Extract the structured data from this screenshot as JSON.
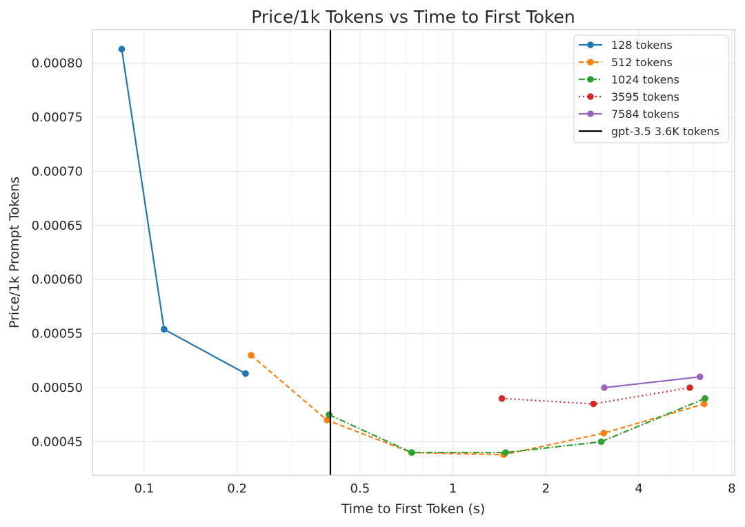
{
  "chart_data": {
    "type": "line",
    "title": "Price/1k Tokens vs Time to First Token",
    "xlabel": "Time to First Token (s)",
    "ylabel": "Price/1k Prompt Tokens",
    "xscale": "log",
    "xlim": [
      0.068,
      8.17
    ],
    "ylim": [
      0.000419,
      0.000831
    ],
    "xticks": [
      0.1,
      0.2,
      0.5,
      1,
      2,
      4,
      8
    ],
    "xtick_labels": [
      "0.1",
      "0.2",
      "0.5",
      "1",
      "2",
      "4",
      "8"
    ],
    "yticks": [
      0.00045,
      0.0005,
      0.00055,
      0.0006,
      0.00065,
      0.0007,
      0.00075,
      0.0008
    ],
    "ytick_labels": [
      "0.00045",
      "0.00050",
      "0.00055",
      "0.00060",
      "0.00065",
      "0.00070",
      "0.00075",
      "0.00080"
    ],
    "grid": true,
    "legend_position": "top-right",
    "series": [
      {
        "name": "128 tokens",
        "color": "#1f77b4",
        "style": "solid",
        "x": [
          0.0846,
          0.116,
          0.213
        ],
        "y": [
          0.000813,
          0.000554,
          0.000513
        ]
      },
      {
        "name": "512 tokens",
        "color": "#ff7f0e",
        "style": "dashed",
        "x": [
          0.222,
          0.391,
          0.735,
          1.46,
          3.08,
          6.51
        ],
        "y": [
          0.00053,
          0.00047,
          0.00044,
          0.000438,
          0.000458,
          0.000485
        ]
      },
      {
        "name": "1024 tokens",
        "color": "#2ca02c",
        "style": "dashdot",
        "x": [
          0.397,
          0.735,
          1.48,
          3.02,
          6.55
        ],
        "y": [
          0.000475,
          0.00044,
          0.00044,
          0.00045,
          0.00049
        ]
      },
      {
        "name": "3595 tokens",
        "color": "#d62728",
        "style": "dotted",
        "x": [
          1.44,
          2.85,
          5.85
        ],
        "y": [
          0.00049,
          0.000485,
          0.0005
        ]
      },
      {
        "name": "7584 tokens",
        "color": "#9467bd",
        "style": "solid",
        "x": [
          3.09,
          6.31
        ],
        "y": [
          0.0005,
          0.00051
        ]
      }
    ],
    "vlines": [
      {
        "name": "gpt-3.5 3.6K tokens",
        "x": 0.401,
        "color": "#000000"
      }
    ]
  }
}
